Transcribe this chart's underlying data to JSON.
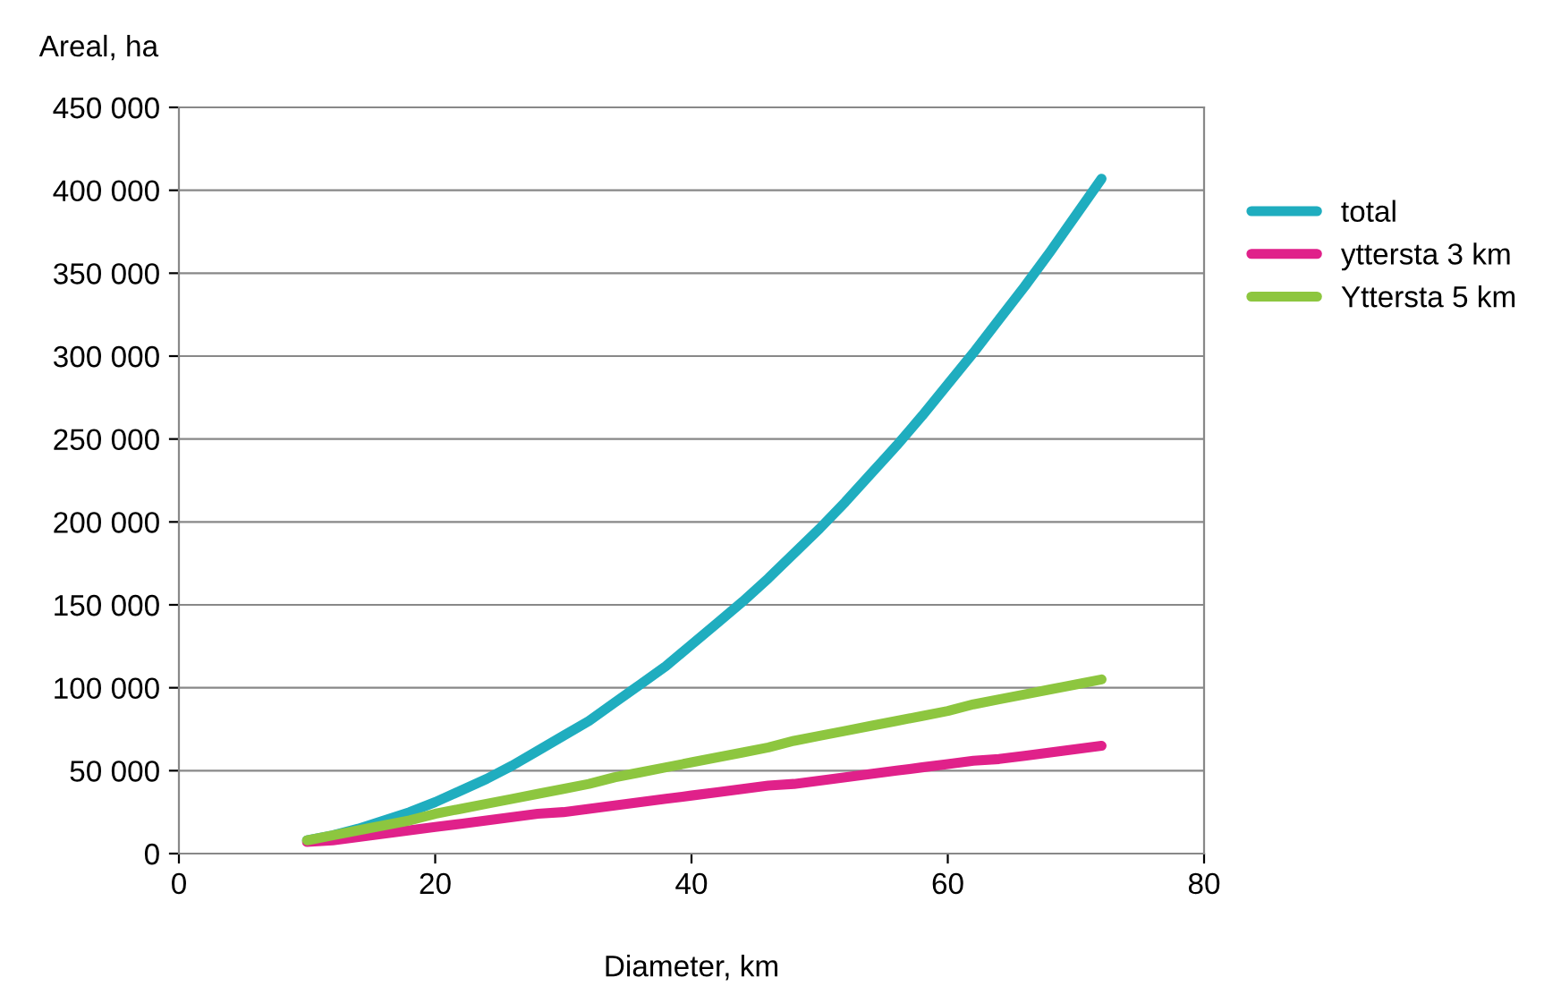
{
  "chart_data": {
    "type": "line",
    "xlabel": "Diameter, km",
    "ylabel": "Areal, ha",
    "x": [
      10,
      12,
      14,
      16,
      18,
      20,
      22,
      24,
      26,
      28,
      30,
      32,
      34,
      36,
      38,
      40,
      42,
      44,
      46,
      48,
      50,
      52,
      54,
      56,
      58,
      60,
      62,
      64,
      66,
      68,
      70,
      72
    ],
    "series": [
      {
        "name": "total",
        "color": "#1fadbf",
        "values": [
          8000,
          11000,
          15000,
          20000,
          25000,
          31000,
          38000,
          45000,
          53000,
          62000,
          71000,
          80000,
          91000,
          102000,
          113000,
          126000,
          139000,
          152000,
          166000,
          181000,
          196000,
          212000,
          229000,
          246000,
          264000,
          283000,
          302000,
          322000,
          342000,
          363000,
          385000,
          407000
        ]
      },
      {
        "name": "yttersta 3 km",
        "color": "#e0218a",
        "values": [
          7000,
          8000,
          10000,
          12000,
          14000,
          16000,
          18000,
          20000,
          22000,
          24000,
          25000,
          27000,
          29000,
          31000,
          33000,
          35000,
          37000,
          39000,
          41000,
          42000,
          44000,
          46000,
          48000,
          50000,
          52000,
          54000,
          56000,
          57000,
          59000,
          61000,
          63000,
          65000
        ]
      },
      {
        "name": "Yttersta 5 km",
        "color": "#8dc63f",
        "values": [
          8000,
          11000,
          14000,
          17000,
          20000,
          24000,
          27000,
          30000,
          33000,
          36000,
          39000,
          42000,
          46000,
          49000,
          52000,
          55000,
          58000,
          61000,
          64000,
          68000,
          71000,
          74000,
          77000,
          80000,
          83000,
          86000,
          90000,
          93000,
          96000,
          99000,
          102000,
          105000
        ]
      }
    ],
    "xlim": [
      0,
      80
    ],
    "xticks": [
      0,
      20,
      40,
      60,
      80
    ],
    "ylim": [
      0,
      450000
    ],
    "yticks": [
      0,
      {
        "value": 50000,
        "label": "50 000"
      },
      {
        "value": 100000,
        "label": "100 000"
      },
      {
        "value": 150000,
        "label": "150 000"
      },
      {
        "value": 200000,
        "label": "200 000"
      },
      {
        "value": 250000,
        "label": "250 000"
      },
      {
        "value": 300000,
        "label": "300 000"
      },
      {
        "value": 350000,
        "label": "350 000"
      },
      {
        "value": 400000,
        "label": "400 000"
      },
      {
        "value": 450000,
        "label": "450 000"
      }
    ],
    "grid": "y",
    "legend": "right",
    "marker": "none",
    "line_style": "solid"
  }
}
